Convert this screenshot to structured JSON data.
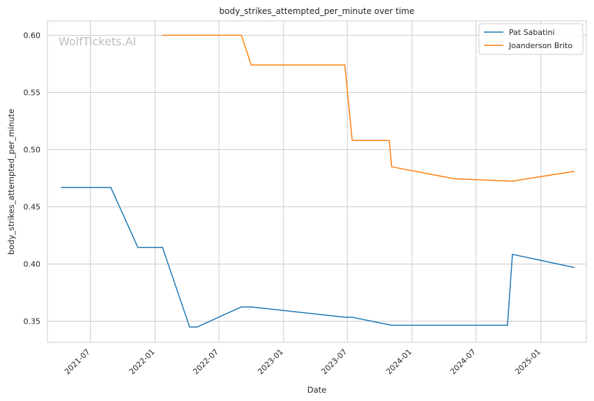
{
  "chart_data": {
    "type": "line",
    "title": "body_strikes_attempted_per_minute over time",
    "xlabel": "Date",
    "ylabel": "body_strikes_attempted_per_minute",
    "watermark": "WolfTickets.AI",
    "xlim": [
      "2021-03-01",
      "2025-05-10"
    ],
    "ylim": [
      0.3315,
      0.6125
    ],
    "x_ticks": [
      "2021-07",
      "2022-01",
      "2022-07",
      "2023-01",
      "2023-07",
      "2024-01",
      "2024-07",
      "2025-01"
    ],
    "y_ticks": [
      0.35,
      0.4,
      0.45,
      0.5,
      0.55,
      0.6
    ],
    "y_tick_labels": [
      "0.35",
      "0.40",
      "0.45",
      "0.50",
      "0.55",
      "0.60"
    ],
    "grid": true,
    "legend_position": "top-right",
    "series": [
      {
        "name": "Pat Sabatini",
        "color": "#1f77b4",
        "x": [
          "2021-04-10",
          "2021-08-28",
          "2021-11-13",
          "2022-01-22",
          "2022-04-09",
          "2022-04-30",
          "2022-09-03",
          "2022-10-01",
          "2023-06-24",
          "2023-07-15",
          "2023-11-04",
          "2024-09-28",
          "2024-10-12",
          "2025-04-05"
        ],
        "values": [
          0.467,
          0.467,
          0.4145,
          0.4145,
          0.345,
          0.345,
          0.3625,
          0.3625,
          0.3535,
          0.3535,
          0.3465,
          0.3465,
          0.4085,
          0.397
        ]
      },
      {
        "name": "Joanderson Brito",
        "color": "#ff7f0e",
        "x": [
          "2022-01-22",
          "2022-09-03",
          "2022-10-01",
          "2023-06-24",
          "2023-07-15",
          "2023-10-28",
          "2023-11-04",
          "2024-05-01",
          "2024-10-12",
          "2025-04-05"
        ],
        "values": [
          0.6,
          0.6,
          0.574,
          0.574,
          0.508,
          0.508,
          0.485,
          0.4745,
          0.4725,
          0.481
        ]
      }
    ]
  }
}
